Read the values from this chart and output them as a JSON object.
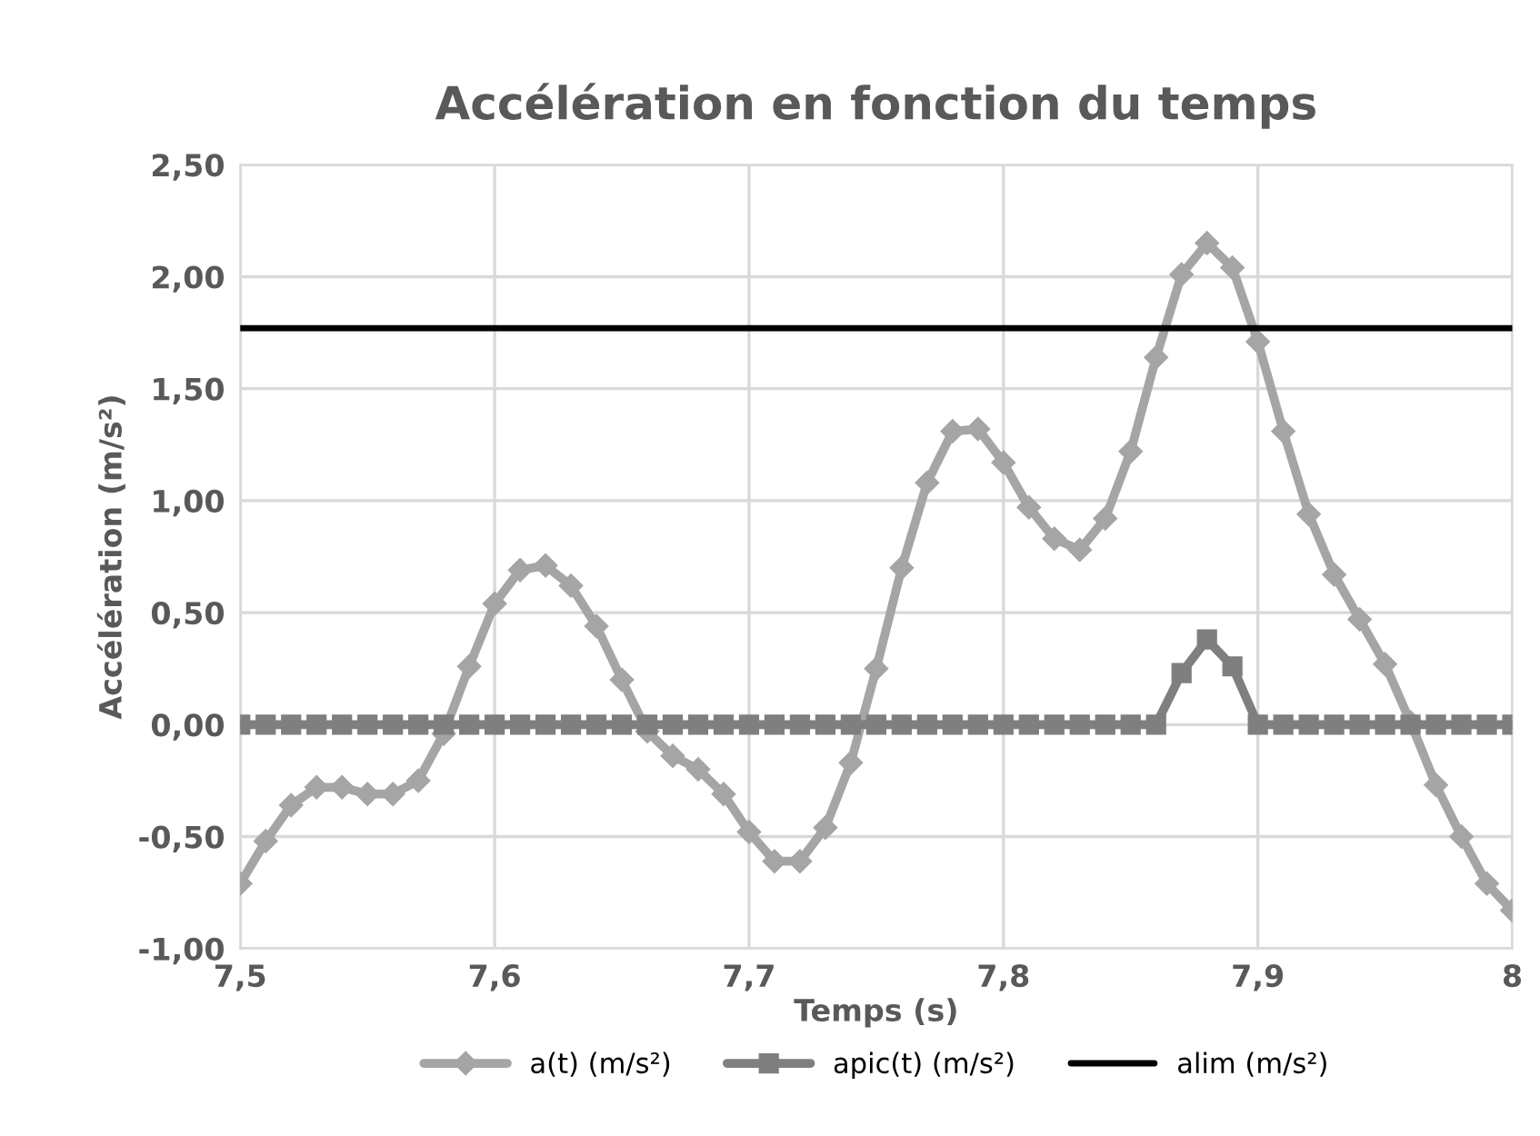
{
  "chart_data": {
    "type": "line",
    "title": "Accélération en fonction du temps",
    "xlabel": "Temps (s)",
    "ylabel": "Accélération (m/s²)",
    "x": [
      7.5,
      7.51,
      7.52,
      7.53,
      7.54,
      7.55,
      7.56,
      7.57,
      7.58,
      7.59,
      7.6,
      7.61,
      7.62,
      7.63,
      7.64,
      7.65,
      7.66,
      7.67,
      7.68,
      7.69,
      7.7,
      7.71,
      7.72,
      7.73,
      7.74,
      7.75,
      7.76,
      7.77,
      7.78,
      7.79,
      7.8,
      7.81,
      7.82,
      7.83,
      7.84,
      7.85,
      7.86,
      7.87,
      7.88,
      7.89,
      7.9,
      7.91,
      7.92,
      7.93,
      7.94,
      7.95,
      7.96,
      7.97,
      7.98,
      7.99,
      8.0
    ],
    "series": [
      {
        "name": "a(t) (m/s²)",
        "color": "#a5a5a5",
        "marker": "diamond",
        "values": [
          -0.71,
          -0.52,
          -0.36,
          -0.28,
          -0.28,
          -0.31,
          -0.31,
          -0.25,
          -0.04,
          0.26,
          0.54,
          0.69,
          0.71,
          0.62,
          0.44,
          0.2,
          -0.03,
          -0.14,
          -0.2,
          -0.31,
          -0.48,
          -0.61,
          -0.61,
          -0.46,
          -0.17,
          0.25,
          0.7,
          1.08,
          1.31,
          1.32,
          1.17,
          0.97,
          0.83,
          0.78,
          0.92,
          1.22,
          1.64,
          2.01,
          2.15,
          2.04,
          1.71,
          1.31,
          0.94,
          0.67,
          0.47,
          0.27,
          0.01,
          -0.27,
          -0.5,
          -0.71,
          -0.83
        ]
      },
      {
        "name": "apic(t) (m/s²)",
        "color": "#7f7f7f",
        "marker": "square",
        "values": [
          0,
          0,
          0,
          0,
          0,
          0,
          0,
          0,
          0,
          0,
          0,
          0,
          0,
          0,
          0,
          0,
          0,
          0,
          0,
          0,
          0,
          0,
          0,
          0,
          0,
          0,
          0,
          0,
          0,
          0,
          0,
          0,
          0,
          0,
          0,
          0,
          0,
          0.23,
          0.38,
          0.26,
          0,
          0,
          0,
          0,
          0,
          0,
          0,
          0,
          0,
          0,
          0
        ]
      },
      {
        "name": "alim (m/s²)",
        "color": "#000000",
        "marker": "none",
        "x": [
          7.5,
          8.0
        ],
        "values": [
          1.77,
          1.77
        ]
      }
    ],
    "xlim": [
      7.5,
      8.0
    ],
    "xticks": [
      {
        "value": 7.5,
        "label": "7,5"
      },
      {
        "value": 7.6,
        "label": "7,6"
      },
      {
        "value": 7.7,
        "label": "7,7"
      },
      {
        "value": 7.8,
        "label": "7,8"
      },
      {
        "value": 7.9,
        "label": "7,9"
      },
      8
    ],
    "ylim": [
      -1.0,
      2.5
    ],
    "yticks": [
      {
        "value": -1.0,
        "label": "-1,00"
      },
      {
        "value": -0.5,
        "label": "-0,50"
      },
      {
        "value": 0,
        "label": "0,00"
      },
      {
        "value": 0.5,
        "label": "0,50"
      },
      {
        "value": 1.0,
        "label": "1,00"
      },
      {
        "value": 1.5,
        "label": "1,50"
      },
      {
        "value": 2.0,
        "label": "2,00"
      },
      {
        "value": 2.5,
        "label": "2,50"
      }
    ],
    "grid": true,
    "legend": "bottom",
    "line_style": "solid"
  }
}
